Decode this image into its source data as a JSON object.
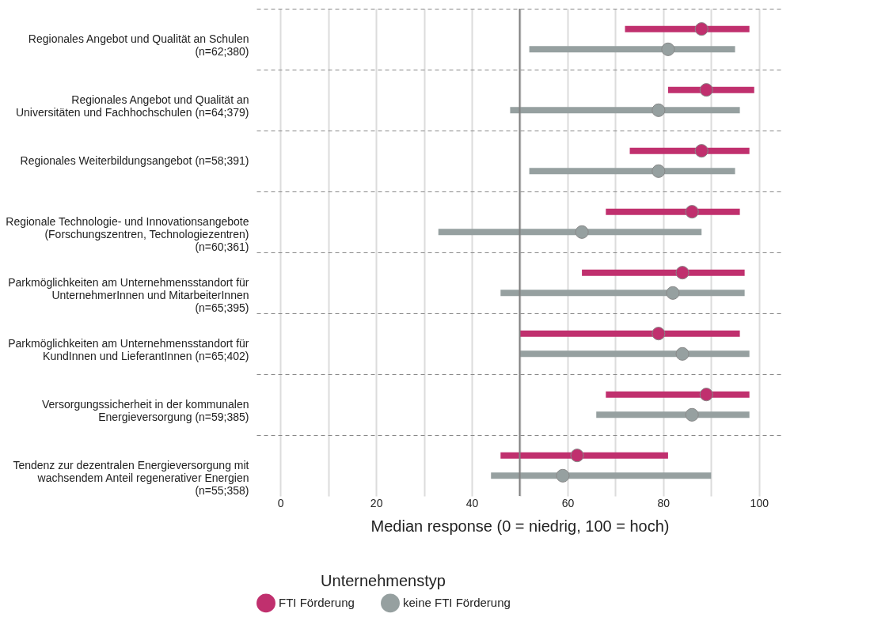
{
  "chart_data": {
    "type": "scatter",
    "orientation": "horizontal",
    "xlabel": "Median response (0 = niedrig, 100 = hoch)",
    "legend_title": "Unternehmenstyp",
    "legend": "bottom",
    "grid": true,
    "marker": "circle",
    "categories": [
      "Regionales Angebot und Qualität an Schulen\n(n=62;380)",
      "Regionales Angebot und Qualität an\nUniversitäten und Fachhochschulen (n=64;379)",
      "Regionales Weiterbildungsangebot (n=58;391)",
      "Regionale Technologie- und Innovationsangebote\n(Forschungszentren, Technologiezentren)\n(n=60;361)",
      "Parkmöglichkeiten am Unternehmensstandort für\nUnternehmerInnen und MitarbeiterInnen\n(n=65;395)",
      "Parkmöglichkeiten am Unternehmensstandort für\nKundInnen und LieferantInnen (n=65;402)",
      "Versorgungssicherheit in der kommunalen\nEnergieversorgung (n=59;385)",
      "Tendenz zur dezentralen Energieversorgung mit\nwachsendem Anteil regenerativer Energien\n(n=55;358)"
    ],
    "xlim": [
      -5,
      105
    ],
    "xticks": [
      0,
      {
        "value": 10,
        "label": null
      },
      20,
      {
        "value": 30,
        "label": null
      },
      40,
      {
        "value": 50,
        "label": null
      },
      60,
      {
        "value": 70,
        "label": null
      },
      80,
      {
        "value": 90,
        "label": null
      },
      100
    ],
    "ref_lines": [
      {
        "axis": "x",
        "value": 50,
        "color": "#808080"
      }
    ],
    "series": [
      {
        "name": "FTI Förderung",
        "color": "#c0306e",
        "values": [
          88,
          89,
          88,
          86,
          84,
          79,
          89,
          62
        ],
        "errors": [
          [
            72,
            98
          ],
          [
            81,
            99
          ],
          [
            73,
            98
          ],
          [
            68,
            96
          ],
          [
            63,
            97
          ],
          [
            50,
            96
          ],
          [
            68,
            98
          ],
          [
            46,
            81
          ]
        ]
      },
      {
        "name": "keine FTI Förderung",
        "color": "#96a0a0",
        "values": [
          81,
          79,
          79,
          63,
          82,
          84,
          86,
          59
        ],
        "errors": [
          [
            52,
            95
          ],
          [
            48,
            96
          ],
          [
            52,
            95
          ],
          [
            33,
            88
          ],
          [
            46,
            97
          ],
          [
            50,
            98
          ],
          [
            66,
            98
          ],
          [
            44,
            90
          ]
        ]
      }
    ]
  }
}
